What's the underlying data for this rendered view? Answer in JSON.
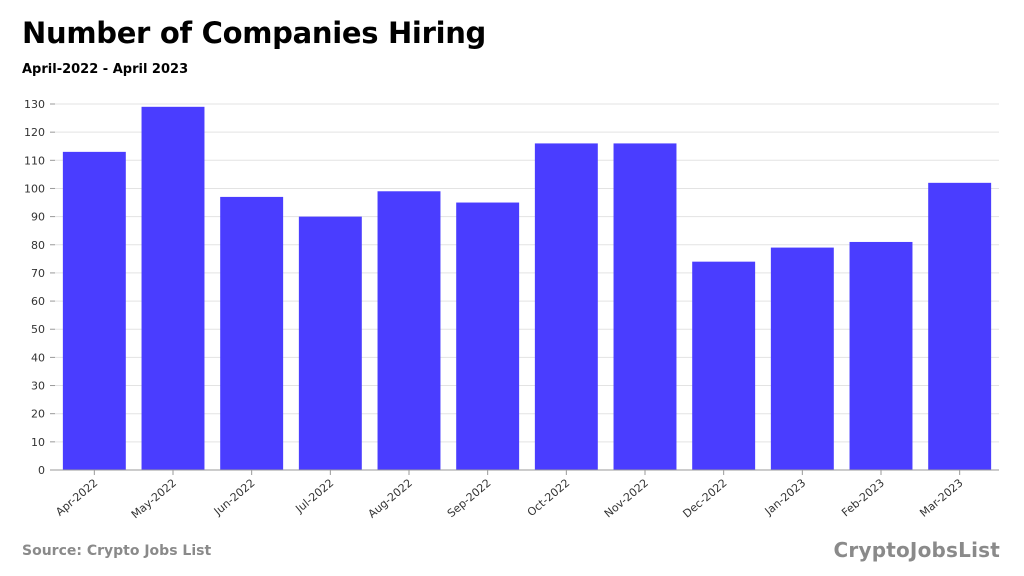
{
  "header": {
    "title": "Number of Companies Hiring",
    "subtitle": "April-2022 - April 2023"
  },
  "footer": {
    "source": "Source: Crypto Jobs List",
    "brand": "CryptoJobsList"
  },
  "colors": {
    "bar": "#4a3dff",
    "grid": "#e3e3e3",
    "axis": "#999999",
    "muted_text": "#8a8a8a"
  },
  "chart_data": {
    "type": "bar",
    "title": "Number of Companies Hiring",
    "subtitle": "April-2022 - April 2023",
    "xlabel": "",
    "ylabel": "",
    "categories": [
      "Apr-2022",
      "May-2022",
      "Jun-2022",
      "Jul-2022",
      "Aug-2022",
      "Sep-2022",
      "Oct-2022",
      "Nov-2022",
      "Dec-2022",
      "Jan-2023",
      "Feb-2023",
      "Mar-2023"
    ],
    "values": [
      113,
      129,
      97,
      90,
      99,
      95,
      116,
      116,
      74,
      79,
      81,
      102
    ],
    "ylim": [
      0,
      130
    ],
    "yticks": [
      0,
      10,
      20,
      30,
      40,
      50,
      60,
      70,
      80,
      90,
      100,
      110,
      120,
      130
    ],
    "grid": true,
    "legend": "none"
  }
}
